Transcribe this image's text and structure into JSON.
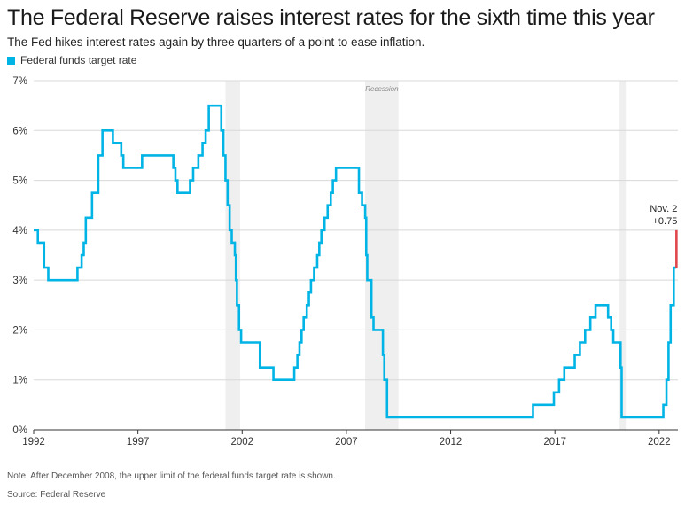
{
  "header": {
    "title": "The Federal Reserve raises interest rates for the sixth time this year",
    "subtitle": "The Fed hikes interest rates again by three quarters of a point to ease inflation."
  },
  "legend": {
    "label": "Federal funds target rate",
    "color": "#00b4e6"
  },
  "footer": {
    "note": "Note: After December 2008, the upper limit of the federal funds target rate is shown.",
    "source": "Source: Federal Reserve"
  },
  "chart_data": {
    "type": "line",
    "title": "The Federal Reserve raises interest rates for the sixth time this year",
    "xlabel": "",
    "ylabel": "",
    "xlim": [
      1992.0,
      2022.9
    ],
    "ylim": [
      0,
      7
    ],
    "y_ticks": [
      "0%",
      "1%",
      "2%",
      "3%",
      "4%",
      "5%",
      "6%",
      "7%"
    ],
    "x_ticks": [
      "1992",
      "1997",
      "2002",
      "2007",
      "2012",
      "2017",
      "2022"
    ],
    "grid": true,
    "legend_position": "top-left",
    "recessions": [
      {
        "start": 2001.2,
        "end": 2001.9,
        "label": ""
      },
      {
        "start": 2007.9,
        "end": 2009.5,
        "label": "Recession"
      },
      {
        "start": 2020.1,
        "end": 2020.4,
        "label": ""
      }
    ],
    "series": [
      {
        "name": "Federal funds target rate",
        "color": "#00b4e6",
        "points": [
          [
            1992.0,
            4.0
          ],
          [
            1992.2,
            4.0
          ],
          [
            1992.2,
            3.75
          ],
          [
            1992.5,
            3.75
          ],
          [
            1992.5,
            3.25
          ],
          [
            1992.7,
            3.25
          ],
          [
            1992.7,
            3.0
          ],
          [
            1994.1,
            3.0
          ],
          [
            1994.1,
            3.25
          ],
          [
            1994.3,
            3.25
          ],
          [
            1994.3,
            3.5
          ],
          [
            1994.4,
            3.5
          ],
          [
            1994.4,
            3.75
          ],
          [
            1994.5,
            3.75
          ],
          [
            1994.5,
            4.25
          ],
          [
            1994.8,
            4.25
          ],
          [
            1994.8,
            4.75
          ],
          [
            1995.1,
            4.75
          ],
          [
            1995.1,
            5.5
          ],
          [
            1995.3,
            5.5
          ],
          [
            1995.3,
            6.0
          ],
          [
            1995.8,
            6.0
          ],
          [
            1995.8,
            5.75
          ],
          [
            1996.2,
            5.75
          ],
          [
            1996.2,
            5.5
          ],
          [
            1996.3,
            5.5
          ],
          [
            1996.3,
            5.25
          ],
          [
            1997.2,
            5.25
          ],
          [
            1997.2,
            5.5
          ],
          [
            1998.7,
            5.5
          ],
          [
            1998.7,
            5.25
          ],
          [
            1998.8,
            5.25
          ],
          [
            1998.8,
            5.0
          ],
          [
            1998.9,
            5.0
          ],
          [
            1998.9,
            4.75
          ],
          [
            1999.5,
            4.75
          ],
          [
            1999.5,
            5.0
          ],
          [
            1999.65,
            5.0
          ],
          [
            1999.65,
            5.25
          ],
          [
            1999.9,
            5.25
          ],
          [
            1999.9,
            5.5
          ],
          [
            2000.1,
            5.5
          ],
          [
            2000.1,
            5.75
          ],
          [
            2000.25,
            5.75
          ],
          [
            2000.25,
            6.0
          ],
          [
            2000.4,
            6.0
          ],
          [
            2000.4,
            6.5
          ],
          [
            2001.0,
            6.5
          ],
          [
            2001.0,
            6.0
          ],
          [
            2001.1,
            6.0
          ],
          [
            2001.1,
            5.5
          ],
          [
            2001.2,
            5.5
          ],
          [
            2001.2,
            5.0
          ],
          [
            2001.3,
            5.0
          ],
          [
            2001.3,
            4.5
          ],
          [
            2001.4,
            4.5
          ],
          [
            2001.4,
            4.0
          ],
          [
            2001.5,
            4.0
          ],
          [
            2001.5,
            3.75
          ],
          [
            2001.65,
            3.75
          ],
          [
            2001.65,
            3.5
          ],
          [
            2001.7,
            3.5
          ],
          [
            2001.7,
            3.0
          ],
          [
            2001.75,
            3.0
          ],
          [
            2001.75,
            2.5
          ],
          [
            2001.85,
            2.5
          ],
          [
            2001.85,
            2.0
          ],
          [
            2001.95,
            2.0
          ],
          [
            2001.95,
            1.75
          ],
          [
            2002.85,
            1.75
          ],
          [
            2002.85,
            1.25
          ],
          [
            2003.5,
            1.25
          ],
          [
            2003.5,
            1.0
          ],
          [
            2004.5,
            1.0
          ],
          [
            2004.5,
            1.25
          ],
          [
            2004.65,
            1.25
          ],
          [
            2004.65,
            1.5
          ],
          [
            2004.75,
            1.5
          ],
          [
            2004.75,
            1.75
          ],
          [
            2004.85,
            1.75
          ],
          [
            2004.85,
            2.0
          ],
          [
            2004.95,
            2.0
          ],
          [
            2004.95,
            2.25
          ],
          [
            2005.1,
            2.25
          ],
          [
            2005.1,
            2.5
          ],
          [
            2005.2,
            2.5
          ],
          [
            2005.2,
            2.75
          ],
          [
            2005.3,
            2.75
          ],
          [
            2005.3,
            3.0
          ],
          [
            2005.45,
            3.0
          ],
          [
            2005.45,
            3.25
          ],
          [
            2005.6,
            3.25
          ],
          [
            2005.6,
            3.5
          ],
          [
            2005.7,
            3.5
          ],
          [
            2005.7,
            3.75
          ],
          [
            2005.8,
            3.75
          ],
          [
            2005.8,
            4.0
          ],
          [
            2005.95,
            4.0
          ],
          [
            2005.95,
            4.25
          ],
          [
            2006.1,
            4.25
          ],
          [
            2006.1,
            4.5
          ],
          [
            2006.25,
            4.5
          ],
          [
            2006.25,
            4.75
          ],
          [
            2006.35,
            4.75
          ],
          [
            2006.35,
            5.0
          ],
          [
            2006.5,
            5.0
          ],
          [
            2006.5,
            5.25
          ],
          [
            2007.6,
            5.25
          ],
          [
            2007.6,
            4.75
          ],
          [
            2007.75,
            4.75
          ],
          [
            2007.75,
            4.5
          ],
          [
            2007.9,
            4.5
          ],
          [
            2007.9,
            4.25
          ],
          [
            2007.95,
            4.25
          ],
          [
            2007.95,
            3.5
          ],
          [
            2008.0,
            3.5
          ],
          [
            2008.0,
            3.0
          ],
          [
            2008.2,
            3.0
          ],
          [
            2008.2,
            2.25
          ],
          [
            2008.3,
            2.25
          ],
          [
            2008.3,
            2.0
          ],
          [
            2008.75,
            2.0
          ],
          [
            2008.75,
            1.5
          ],
          [
            2008.82,
            1.5
          ],
          [
            2008.82,
            1.0
          ],
          [
            2008.95,
            1.0
          ],
          [
            2008.95,
            0.25
          ],
          [
            2015.95,
            0.25
          ],
          [
            2015.95,
            0.5
          ],
          [
            2016.95,
            0.5
          ],
          [
            2016.95,
            0.75
          ],
          [
            2017.2,
            0.75
          ],
          [
            2017.2,
            1.0
          ],
          [
            2017.45,
            1.0
          ],
          [
            2017.45,
            1.25
          ],
          [
            2017.95,
            1.25
          ],
          [
            2017.95,
            1.5
          ],
          [
            2018.2,
            1.5
          ],
          [
            2018.2,
            1.75
          ],
          [
            2018.45,
            1.75
          ],
          [
            2018.45,
            2.0
          ],
          [
            2018.7,
            2.0
          ],
          [
            2018.7,
            2.25
          ],
          [
            2018.95,
            2.25
          ],
          [
            2018.95,
            2.5
          ],
          [
            2019.55,
            2.5
          ],
          [
            2019.55,
            2.25
          ],
          [
            2019.7,
            2.25
          ],
          [
            2019.7,
            2.0
          ],
          [
            2019.8,
            2.0
          ],
          [
            2019.8,
            1.75
          ],
          [
            2020.15,
            1.75
          ],
          [
            2020.15,
            1.25
          ],
          [
            2020.2,
            1.25
          ],
          [
            2020.2,
            0.25
          ],
          [
            2022.2,
            0.25
          ],
          [
            2022.2,
            0.5
          ],
          [
            2022.35,
            0.5
          ],
          [
            2022.35,
            1.0
          ],
          [
            2022.45,
            1.0
          ],
          [
            2022.45,
            1.75
          ],
          [
            2022.55,
            1.75
          ],
          [
            2022.55,
            2.5
          ],
          [
            2022.7,
            2.5
          ],
          [
            2022.7,
            3.25
          ],
          [
            2022.83,
            3.25
          ]
        ]
      }
    ],
    "highlight": {
      "x": 2022.83,
      "from": 3.25,
      "to": 4.0,
      "color": "#e0474c",
      "label_line1": "Nov. 2",
      "label_line2": "+0.75"
    }
  }
}
